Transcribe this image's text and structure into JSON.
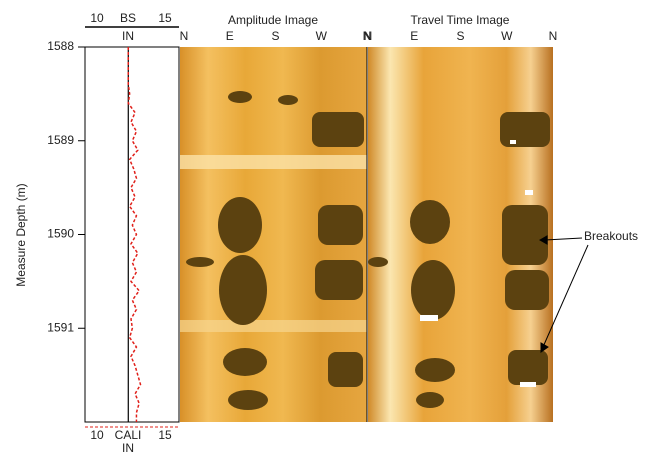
{
  "chart_data": {
    "type": "line",
    "y_label": "Measure Depth (m)",
    "ylim": [
      1588,
      1592
    ],
    "yticks": [
      1588,
      1589,
      1590,
      1591
    ],
    "xlim": [
      10,
      15
    ],
    "xticks": [
      10,
      15
    ],
    "x_unit": "IN",
    "depths": [
      1588.0,
      1588.1,
      1588.2,
      1588.3,
      1588.4,
      1588.5,
      1588.6,
      1588.7,
      1588.8,
      1588.9,
      1589.0,
      1589.1,
      1589.2,
      1589.3,
      1589.4,
      1589.5,
      1589.6,
      1589.7,
      1589.8,
      1589.9,
      1590.0,
      1590.1,
      1590.2,
      1590.3,
      1590.4,
      1590.5,
      1590.6,
      1590.7,
      1590.8,
      1590.9,
      1591.0,
      1591.1,
      1591.2,
      1591.3,
      1591.4,
      1591.5,
      1591.6,
      1591.7,
      1591.8,
      1591.9,
      1592.0
    ],
    "series": [
      {
        "name": "BS",
        "color": "#000000",
        "dashed": false,
        "values": [
          12.3,
          12.3,
          12.3,
          12.3,
          12.3,
          12.3,
          12.3,
          12.3,
          12.3,
          12.3,
          12.3,
          12.3,
          12.3,
          12.3,
          12.3,
          12.3,
          12.3,
          12.3,
          12.3,
          12.3,
          12.3,
          12.3,
          12.3,
          12.3,
          12.3,
          12.3,
          12.3,
          12.3,
          12.3,
          12.3,
          12.3,
          12.3,
          12.3,
          12.3,
          12.3,
          12.3,
          12.3,
          12.3,
          12.3,
          12.3,
          12.3
        ]
      },
      {
        "name": "CALI",
        "color": "#e0201a",
        "dashed": true,
        "values": [
          12.3,
          12.3,
          12.3,
          12.3,
          12.3,
          12.4,
          12.3,
          12.8,
          12.5,
          12.9,
          12.6,
          13.0,
          12.4,
          12.7,
          12.9,
          12.5,
          12.8,
          12.4,
          12.9,
          12.6,
          12.9,
          12.5,
          13.0,
          12.6,
          12.9,
          12.5,
          13.1,
          12.6,
          12.9,
          12.5,
          12.6,
          12.4,
          12.9,
          12.5,
          12.8,
          13.0,
          13.2,
          12.8,
          13.1,
          12.9,
          12.9
        ]
      }
    ],
    "panels": [
      {
        "title": "Amplitude Image",
        "azimuths": [
          "N",
          "E",
          "S",
          "W",
          "N"
        ]
      },
      {
        "title": "Travel Time Image",
        "azimuths": [
          "N",
          "E",
          "S",
          "W",
          "N"
        ]
      }
    ],
    "annotation": "Breakouts"
  }
}
